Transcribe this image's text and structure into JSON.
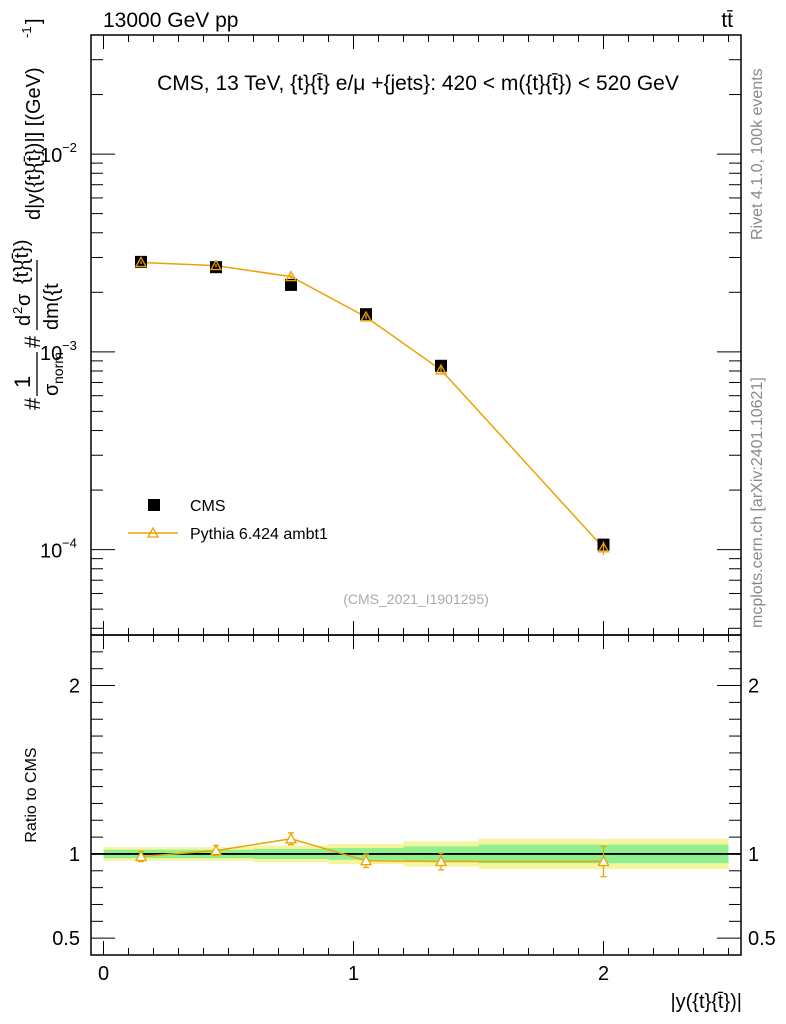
{
  "header": {
    "left": "13000 GeV pp",
    "right": "tt̄"
  },
  "side_labels": {
    "rivet": "Rivet 4.1.0,  100k events",
    "mcplots": "mcplots.cern.ch [arXiv:2401.10621]"
  },
  "chart_data": {
    "type": "line",
    "title": "CMS, 13 TeV, {t}{t̄} e/μ +{jets}: 420 < m({t}{t̄}) < 520 GeV",
    "watermark": "(CMS_2021_I1901295)",
    "xlabel": "|y({t}{t̄})|",
    "ylabel": "#1/σ_norm #d²σ/dm({t}{t̄}) d|y({t}{t̄})| [(GeV)⁻¹]",
    "ylabel_parts": {
      "one": "1",
      "sigma": "σ",
      "norm": "norm",
      "hash": "#",
      "num": "d²σ",
      "num_d": "d",
      "num_2": "2",
      "num_s": "σ",
      "braces": "{t}{t̄})",
      "den": "dm({t",
      "rest": "d|y({t}{t̄})|] [(GeV)",
      "exp": "-1",
      "close": "]"
    },
    "xlim": [
      -0.05,
      2.55
    ],
    "ylim": [
      3.7e-05,
      0.04
    ],
    "yscale": "log",
    "x_ticks": [
      "0",
      "1",
      "2"
    ],
    "y_ticks": [
      {
        "base": "10",
        "exp": "−2"
      },
      {
        "base": "10",
        "exp": "−3"
      },
      {
        "base": "10",
        "exp": "−4"
      }
    ],
    "legend": {
      "position": "bottom-left",
      "entries": [
        "CMS",
        "Pythia 6.424 ambt1"
      ]
    },
    "series": [
      {
        "name": "CMS",
        "x": [
          0.15,
          0.45,
          0.75,
          1.05,
          1.35,
          2.0
        ],
        "values": [
          0.00285,
          0.00268,
          0.00218,
          0.00155,
          0.00085,
          0.000106
        ],
        "errors": [
          6e-05,
          6e-05,
          5e-05,
          4e-05,
          3e-05,
          6e-06
        ]
      },
      {
        "name": "Pythia 6.424 ambt1",
        "x": [
          0.15,
          0.45,
          0.75,
          1.05,
          1.35,
          2.0
        ],
        "values": [
          0.00283,
          0.00273,
          0.0024,
          0.0015,
          0.00081,
          0.000102
        ],
        "errors": [
          5e-05,
          5e-05,
          6e-05,
          4e-05,
          3e-05,
          8e-06
        ]
      }
    ],
    "ratio": {
      "ylabel": "Ratio to CMS",
      "ylim": [
        0.4,
        2.3
      ],
      "y_ticks": [
        "0.5",
        "1",
        "2"
      ],
      "bin_edges": [
        0.0,
        0.3,
        0.6,
        0.9,
        1.2,
        1.5,
        2.5
      ],
      "band_inner": [
        0.025,
        0.025,
        0.03,
        0.035,
        0.045,
        0.055
      ],
      "band_outer": [
        0.04,
        0.04,
        0.05,
        0.06,
        0.075,
        0.09
      ],
      "x": [
        0.15,
        0.45,
        0.75,
        1.05,
        1.35,
        2.0
      ],
      "values": [
        0.985,
        1.02,
        1.09,
        0.96,
        0.955,
        0.955
      ],
      "errors": [
        0.03,
        0.03,
        0.035,
        0.04,
        0.05,
        0.09
      ]
    },
    "colors": {
      "data": "#000000",
      "mc": "#eea200",
      "band_inner": "#8ef08e",
      "band_outer": "#f5f5a0"
    }
  }
}
